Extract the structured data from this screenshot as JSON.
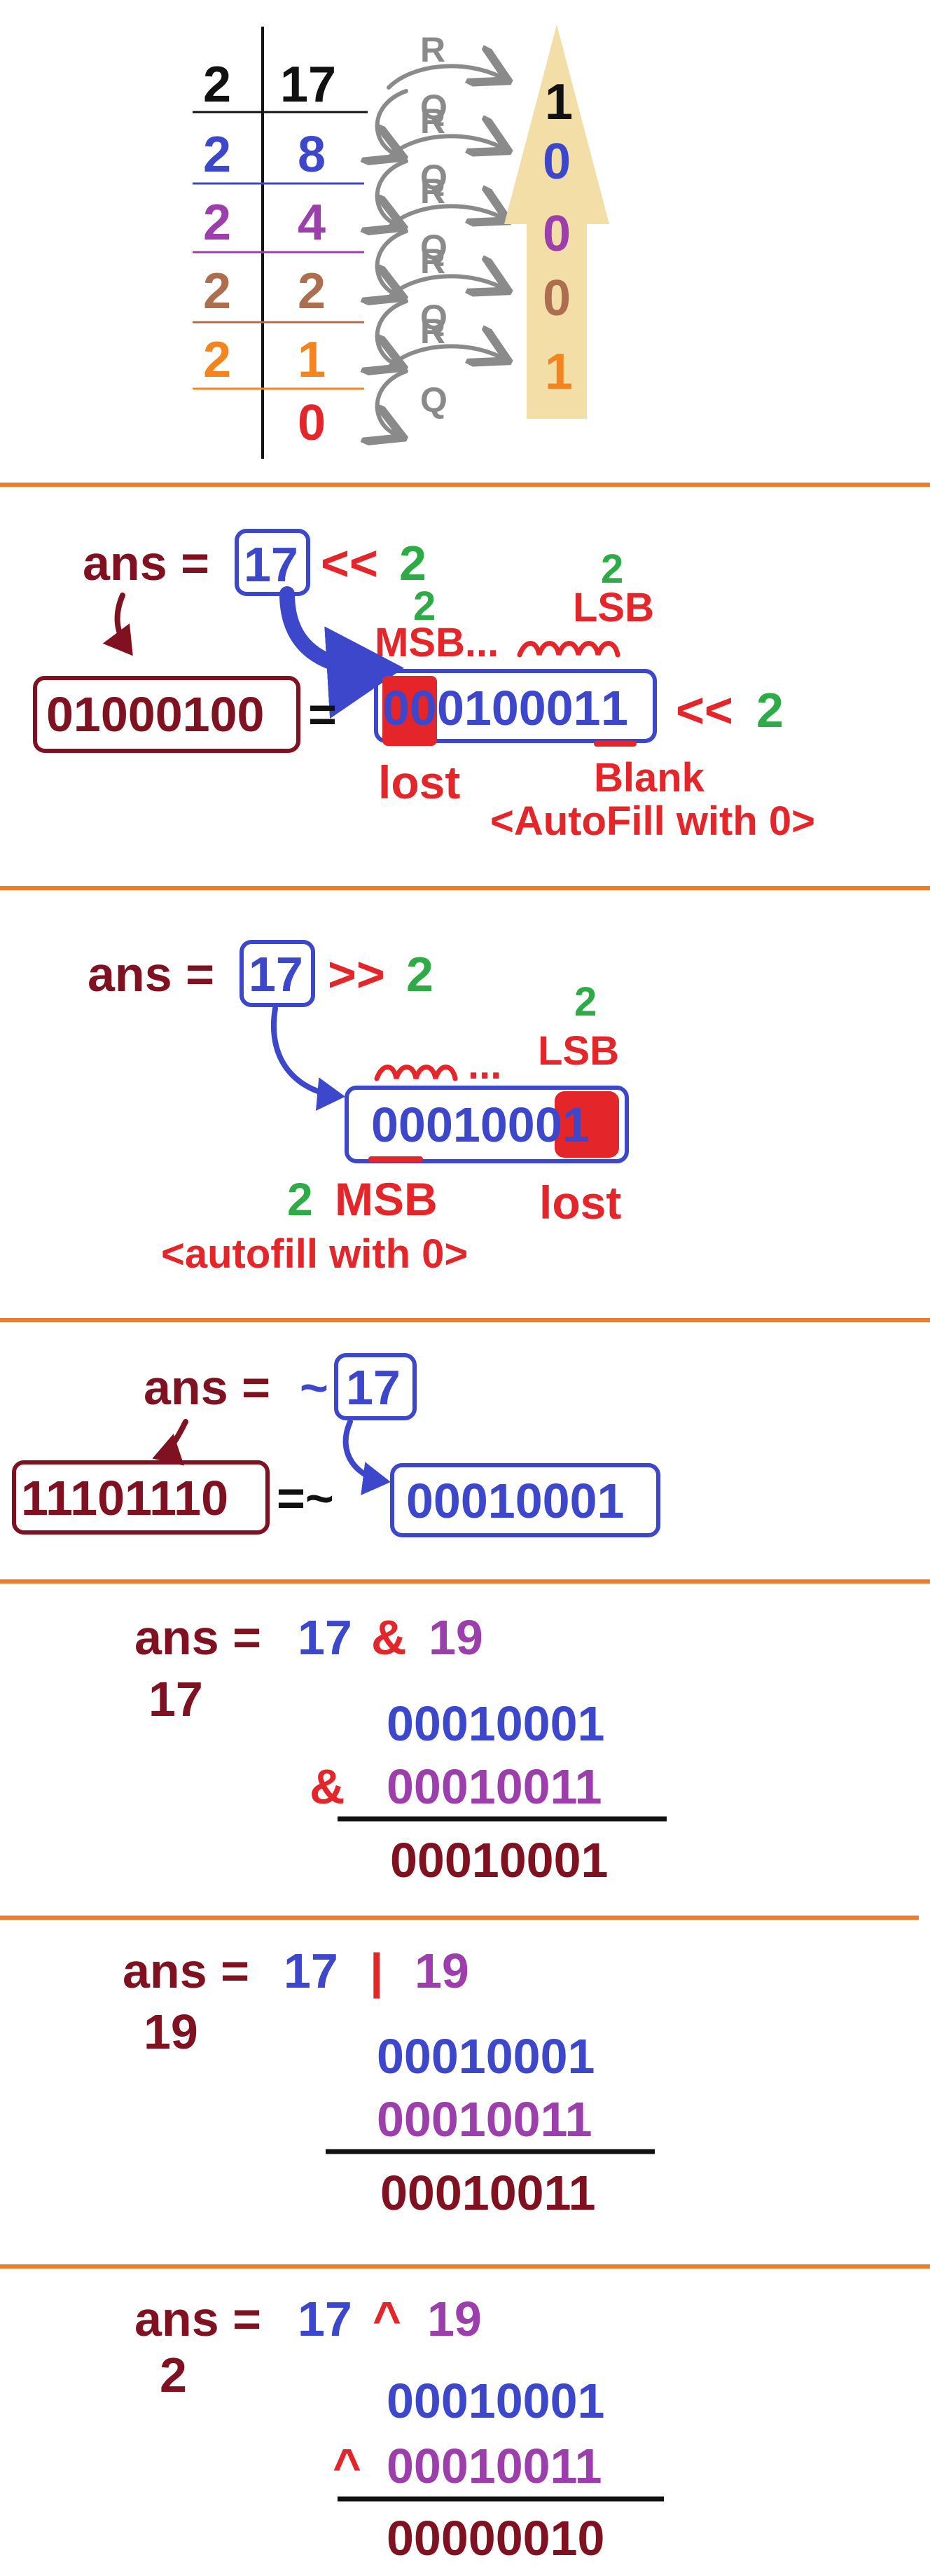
{
  "colors": {
    "separator": "#f07b2b",
    "maroon": "#7f1120",
    "blue": "#3d47cc",
    "purple": "#9c3eab",
    "brown": "#ad6e4f",
    "orange": "#f4841e",
    "red": "#e4262b",
    "green": "#2eab46",
    "black": "#111111",
    "gray": "#8a8a8a",
    "cream": "#f3dea7"
  },
  "division": {
    "rows": [
      {
        "divisor": "2",
        "dividend": "17",
        "color": "black"
      },
      {
        "divisor": "2",
        "dividend": "8",
        "color": "blue"
      },
      {
        "divisor": "2",
        "dividend": "4",
        "color": "purple"
      },
      {
        "divisor": "2",
        "dividend": "2",
        "color": "brown"
      },
      {
        "divisor": "2",
        "dividend": "1",
        "color": "orange"
      },
      {
        "divisor": "",
        "dividend": "0",
        "color": "red"
      }
    ],
    "remainder_letter": "R",
    "quotient_letter": "Q",
    "bits": [
      {
        "text": "1",
        "color": "black"
      },
      {
        "text": "0",
        "color": "blue"
      },
      {
        "text": "0",
        "color": "purple"
      },
      {
        "text": "0",
        "color": "brown"
      },
      {
        "text": "1",
        "color": "orange"
      }
    ]
  },
  "left_shift": {
    "ans": "ans =",
    "operand": "17",
    "operator": "<<",
    "amount": "2",
    "msb_count": "2",
    "msb_label": "MSB...",
    "lsb_count": "2",
    "lsb_label": "LSB",
    "result": "01000100",
    "equals": "=",
    "bits_lost_part": "00",
    "bits_rest": "010001",
    "bits_marked": "1",
    "op_after": "<<",
    "amount_after": "2",
    "lost_label": "lost",
    "blank_label": "Blank",
    "autofill_label": "<AutoFill with 0>"
  },
  "right_shift": {
    "ans": "ans =",
    "operand": "17",
    "operator": ">>",
    "amount": "2",
    "lsb_count": "2",
    "lsb_label": "LSB",
    "dots": "...",
    "bits_underlined": "00",
    "bits_middle": "0100",
    "bits_lost": "01",
    "msb_count": "2",
    "msb_label": "MSB",
    "lost_label": "lost",
    "autofill_label": "<autofill with 0>"
  },
  "not_op": {
    "ans": "ans =",
    "tilde": "~",
    "operand": "17",
    "result": "11101110",
    "equals": "=~",
    "operand_bits": "00010001"
  },
  "and_op": {
    "ans": "ans =",
    "left": "17",
    "operator": "&",
    "right": "19",
    "result_decimal": "17",
    "line1": "00010001",
    "op_symbol": "&",
    "line2": "00010011",
    "result": "00010001"
  },
  "or_op": {
    "ans": "ans =",
    "left": "17",
    "operator": "|",
    "right": "19",
    "result_decimal": "19",
    "line1": "00010001",
    "line2": "00010011",
    "result": "00010011"
  },
  "xor_op": {
    "ans": "ans =",
    "left": "17",
    "operator": "^",
    "right": "19",
    "result_decimal": "2",
    "line1": "00010001",
    "op_symbol": "^",
    "line2": "00010011",
    "result": "00000010"
  }
}
